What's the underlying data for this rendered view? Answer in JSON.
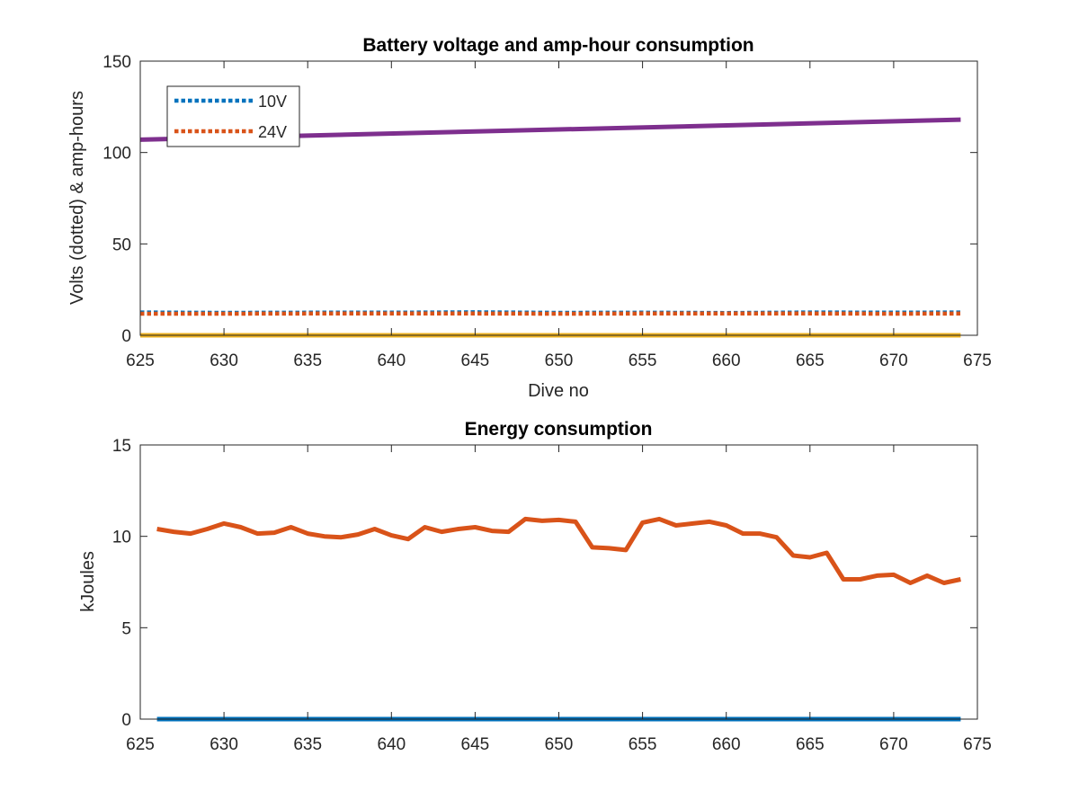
{
  "colors": {
    "blue": "#0072BD",
    "orange": "#D95319",
    "yellow": "#EDB120",
    "purple": "#7E2F8E",
    "axis": "#262626",
    "background": "#ffffff"
  },
  "chart_data": [
    {
      "type": "line",
      "title": "Battery voltage and amp-hour consumption",
      "xlabel": "Dive no",
      "ylabel": "Volts (dotted) & amp-hours",
      "xlim": [
        625,
        675
      ],
      "ylim": [
        0,
        150
      ],
      "xticks": [
        625,
        630,
        635,
        640,
        645,
        650,
        655,
        660,
        665,
        670,
        675
      ],
      "yticks": [
        0,
        50,
        100,
        150
      ],
      "grid": false,
      "legend": {
        "placement": "top-left",
        "entries": [
          "10V",
          "24V"
        ]
      },
      "series": [
        {
          "name": "10V",
          "style": "dotted",
          "color": "blue",
          "x": [
            625,
            630,
            635,
            640,
            645,
            650,
            655,
            660,
            665,
            670,
            674
          ],
          "values": [
            12.5,
            12.3,
            12.4,
            12.4,
            12.6,
            12.3,
            12.4,
            12.2,
            12.5,
            12.4,
            12.5
          ]
        },
        {
          "name": "24V",
          "style": "dotted",
          "color": "orange",
          "x": [
            625,
            630,
            635,
            640,
            645,
            650,
            655,
            660,
            665,
            670,
            674
          ],
          "values": [
            11.8,
            11.8,
            11.9,
            11.9,
            11.9,
            11.8,
            11.9,
            11.9,
            11.9,
            11.8,
            11.9
          ]
        },
        {
          "style": "solid",
          "color": "yellow",
          "x": [
            625,
            674
          ],
          "values": [
            0,
            0
          ]
        },
        {
          "style": "solid",
          "color": "purple",
          "x": [
            625,
            674
          ],
          "values": [
            107,
            118
          ]
        }
      ]
    },
    {
      "type": "line",
      "title": "Energy consumption",
      "xlabel": "",
      "ylabel": "kJoules",
      "xlim": [
        625,
        675
      ],
      "ylim": [
        0,
        15
      ],
      "xticks": [
        625,
        630,
        635,
        640,
        645,
        650,
        655,
        660,
        665,
        670,
        675
      ],
      "yticks": [
        0,
        5,
        10,
        15
      ],
      "grid": false,
      "series": [
        {
          "style": "solid",
          "color": "blue",
          "x": [
            626,
            674
          ],
          "values": [
            0,
            0
          ]
        },
        {
          "style": "solid",
          "color": "orange",
          "x": [
            626,
            627,
            628,
            629,
            630,
            631,
            632,
            633,
            634,
            635,
            636,
            637,
            638,
            639,
            640,
            641,
            642,
            643,
            644,
            645,
            646,
            647,
            648,
            649,
            650,
            651,
            652,
            653,
            654,
            655,
            656,
            657,
            658,
            659,
            660,
            661,
            662,
            663,
            664,
            665,
            666,
            667,
            668,
            669,
            670,
            671,
            672,
            673,
            674
          ],
          "values": [
            10.4,
            10.25,
            10.15,
            10.4,
            10.7,
            10.5,
            10.15,
            10.2,
            10.5,
            10.15,
            10.0,
            9.95,
            10.1,
            10.4,
            10.05,
            9.85,
            10.5,
            10.25,
            10.4,
            10.5,
            10.3,
            10.25,
            10.95,
            10.85,
            10.9,
            10.8,
            9.4,
            9.35,
            9.25,
            10.75,
            10.95,
            10.6,
            10.7,
            10.8,
            10.6,
            10.15,
            10.15,
            9.95,
            8.95,
            8.85,
            9.1,
            7.65,
            7.65,
            7.85,
            7.9,
            7.45,
            7.85,
            7.45,
            7.65
          ]
        }
      ]
    }
  ]
}
